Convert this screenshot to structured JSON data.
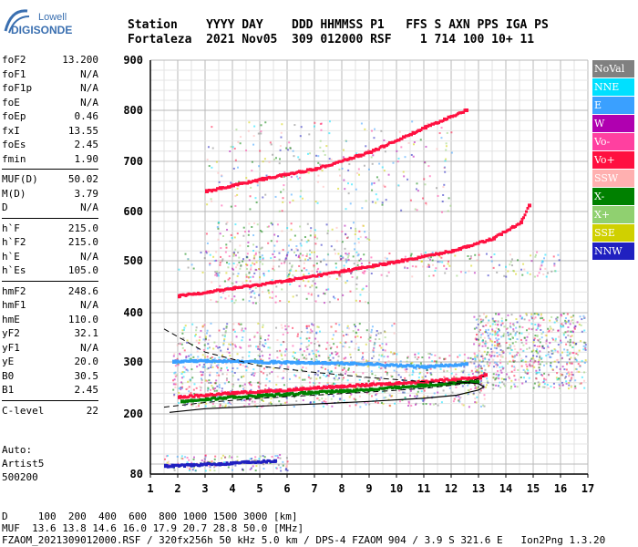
{
  "logo": {
    "line1": "Lowell",
    "line2": "DIGISONDE"
  },
  "header": {
    "labels": "Station    YYYY DAY    DDD HHMMSS P1   FFS S AXN PPS IGA PS",
    "values": "Fortaleza  2021 Nov05  309 012000 RSF    1 714 100 10+ 11"
  },
  "params": [
    [
      {
        "name": "foF2",
        "value": "13.200"
      },
      {
        "name": "foF1",
        "value": "N/A"
      },
      {
        "name": "foF1p",
        "value": "N/A"
      },
      {
        "name": "foE",
        "value": "N/A"
      },
      {
        "name": "foEp",
        "value": "0.46"
      },
      {
        "name": "fxI",
        "value": "13.55"
      },
      {
        "name": "foEs",
        "value": "2.45"
      },
      {
        "name": "fmin",
        "value": "1.90"
      }
    ],
    [
      {
        "name": "MUF(D)",
        "value": "50.02"
      },
      {
        "name": "M(D)",
        "value": "3.79"
      },
      {
        "name": "D",
        "value": "N/A"
      }
    ],
    [
      {
        "name": "h`F",
        "value": "215.0"
      },
      {
        "name": "h`F2",
        "value": "215.0"
      },
      {
        "name": "h`E",
        "value": "N/A"
      },
      {
        "name": "h`Es",
        "value": "105.0"
      }
    ],
    [
      {
        "name": "hmF2",
        "value": "248.6"
      },
      {
        "name": "hmF1",
        "value": "N/A"
      },
      {
        "name": "hmE",
        "value": "110.0"
      },
      {
        "name": "yF2",
        "value": "32.1"
      },
      {
        "name": "yF1",
        "value": "N/A"
      },
      {
        "name": "yE",
        "value": "20.0"
      },
      {
        "name": "B0",
        "value": "30.5"
      },
      {
        "name": "B1",
        "value": "2.45"
      }
    ],
    [
      {
        "name": "C-level",
        "value": "22"
      }
    ]
  ],
  "auto": {
    "line1": "Auto:",
    "line2": "Artist5",
    "line3": "500200"
  },
  "legend": [
    {
      "label": "NoVal",
      "color": "#808080"
    },
    {
      "label": "NNE",
      "color": "#00e0ff"
    },
    {
      "label": "E",
      "color": "#3aa0ff"
    },
    {
      "label": "W",
      "color": "#b000b0"
    },
    {
      "label": "Vo-",
      "color": "#ff40a0"
    },
    {
      "label": "Vo+",
      "color": "#ff1040"
    },
    {
      "label": "SSW",
      "color": "#ffb0b0"
    },
    {
      "label": "X-",
      "color": "#008000"
    },
    {
      "label": "X+",
      "color": "#90d070"
    },
    {
      "label": "SSE",
      "color": "#d0d000"
    },
    {
      "label": "NNW",
      "color": "#2020c0"
    }
  ],
  "footer": {
    "d_line": "D     100  200  400  600  800 1000 1500 3000 [km]",
    "muf_line": "MUF  13.6 13.8 14.6 16.0 17.9 20.7 28.8 50.0 [MHz]",
    "info_line": "FZAOM_2021309012000.RSF / 320fx256h 50 kHz 5.0 km / DPS-4 FZAOM 904 / 3.9 S 321.6 E   Ion2Png 1.3.20"
  },
  "chart_data": {
    "type": "scatter",
    "xlim": [
      1,
      17
    ],
    "ylim": [
      80,
      900
    ],
    "xticks": [
      "1",
      "2",
      "3",
      "4",
      "5",
      "6",
      "7",
      "8",
      "9",
      "10",
      "11",
      "12",
      "13",
      "14",
      "15",
      "16",
      "17"
    ],
    "yticks": [
      "80",
      "200",
      "300",
      "400",
      "500",
      "600",
      "700",
      "800",
      "900"
    ],
    "series": [
      {
        "name": "O-trace",
        "color": "#ff1040",
        "points": [
          [
            2.0,
            232
          ],
          [
            3,
            236
          ],
          [
            4,
            240
          ],
          [
            5,
            243
          ],
          [
            6,
            246
          ],
          [
            7,
            250
          ],
          [
            8,
            253
          ],
          [
            9,
            256
          ],
          [
            10,
            259
          ],
          [
            11,
            262
          ],
          [
            12,
            266
          ],
          [
            13,
            270
          ],
          [
            13.2,
            275
          ]
        ]
      },
      {
        "name": "X-trace",
        "color": "#008000",
        "points": [
          [
            2.1,
            224
          ],
          [
            3,
            228
          ],
          [
            4,
            232
          ],
          [
            5,
            235
          ],
          [
            6,
            238
          ],
          [
            7,
            241
          ],
          [
            8,
            244
          ],
          [
            9,
            247
          ],
          [
            10,
            251
          ],
          [
            11,
            255
          ],
          [
            12,
            259
          ],
          [
            12.9,
            262
          ]
        ]
      },
      {
        "name": "2F-trace",
        "color": "#ff1040",
        "points": [
          [
            2,
            432
          ],
          [
            4,
            447
          ],
          [
            6,
            462
          ],
          [
            8,
            480
          ],
          [
            10,
            498
          ],
          [
            12,
            520
          ],
          [
            13.5,
            545
          ],
          [
            14.5,
            578
          ],
          [
            14.8,
            612
          ]
        ]
      },
      {
        "name": "3F-trace",
        "color": "#ff1040",
        "points": [
          [
            3,
            640
          ],
          [
            5,
            664
          ],
          [
            7,
            685
          ],
          [
            9,
            718
          ],
          [
            11,
            766
          ],
          [
            12.5,
            800
          ]
        ]
      },
      {
        "name": "Es-trace",
        "color": "#3aa0ff",
        "points": [
          [
            1.8,
            300
          ],
          [
            3,
            302
          ],
          [
            5,
            300
          ],
          [
            7,
            298
          ],
          [
            9,
            296
          ],
          [
            11,
            290
          ],
          [
            12.5,
            296
          ]
        ]
      },
      {
        "name": "low-echo",
        "color": "#2020c0",
        "points": [
          [
            1.5,
            96
          ],
          [
            2.5,
            98
          ],
          [
            3.5,
            100
          ],
          [
            4.5,
            104
          ],
          [
            5.5,
            106
          ]
        ]
      }
    ],
    "profile": {
      "points": [
        [
          1.7,
          203
        ],
        [
          3,
          210
        ],
        [
          5,
          215
        ],
        [
          7,
          219
        ],
        [
          9,
          224
        ],
        [
          11,
          230
        ],
        [
          12.2,
          236
        ],
        [
          13.0,
          246
        ],
        [
          13.2,
          252
        ],
        [
          13.0,
          258
        ],
        [
          12.2,
          262
        ]
      ]
    },
    "dashed": [
      [
        1.5,
        367
      ],
      [
        3,
        320
      ],
      [
        5,
        292
      ],
      [
        7,
        280
      ],
      [
        9,
        270
      ],
      [
        11,
        262
      ],
      [
        12.5,
        258
      ],
      [
        13.2,
        272
      ]
    ],
    "dashed2": [
      [
        1.5,
        213
      ],
      [
        3,
        222
      ],
      [
        5,
        230
      ],
      [
        7,
        236
      ],
      [
        9,
        242
      ],
      [
        11,
        249
      ],
      [
        12.5,
        258
      ]
    ]
  }
}
